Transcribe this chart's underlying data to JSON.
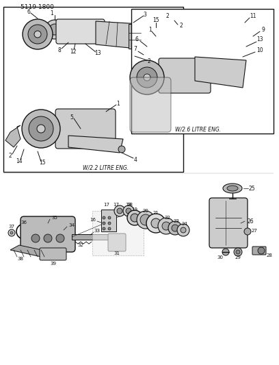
{
  "title": "5119 1800",
  "background_color": "#ffffff",
  "diagram_bg": "#f0eeea",
  "border_color": "#222222",
  "line_color": "#111111",
  "text_color": "#111111",
  "label1_text": "W/2.2 LITRE ENG.",
  "label2_text": "W/2.6 LITRE ENG.",
  "figsize": [
    4.08,
    5.33
  ],
  "dpi": 100
}
